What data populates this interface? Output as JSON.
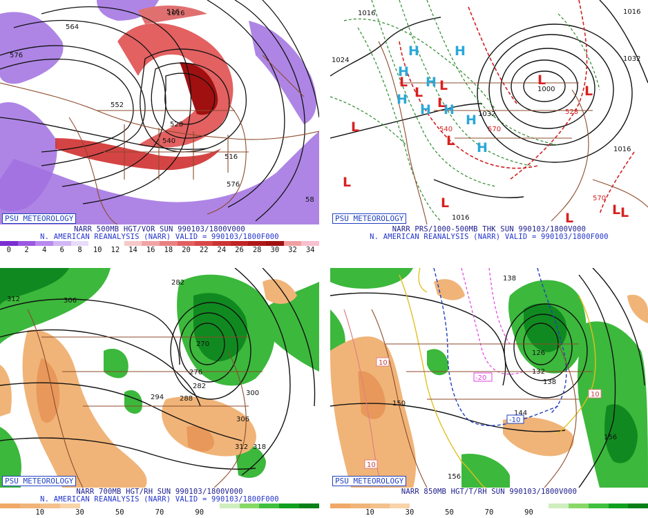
{
  "branding": "PSU METEOROLOGY",
  "panels": [
    {
      "id": "p1",
      "caption1": "NARR 500MB HGT/VOR SUN 990103/1800V000",
      "caption2": "N. AMERICAN REANALYSIS (NARR) VALID = 990103/1800F000",
      "colorbar": {
        "colors": [
          "#7a2fd0",
          "#9a58e0",
          "#b888ee",
          "#d2b6f4",
          "#e8dcfa",
          "#ffffff",
          "#ffffff",
          "#f6c8c8",
          "#f0a4a4",
          "#e88080",
          "#e06060",
          "#d84848",
          "#cc3434",
          "#c02424",
          "#b01818",
          "#a01010",
          "#f0a0a0",
          "#f8c0d0"
        ],
        "ticks": [
          "0",
          "2",
          "4",
          "6",
          "8",
          "10",
          "12",
          "14",
          "16",
          "18",
          "20",
          "22",
          "24",
          "26",
          "28",
          "30",
          "32",
          "34"
        ]
      },
      "labels": [
        "564",
        "576",
        "552",
        "528",
        "540",
        "516",
        "576",
        "516",
        "58"
      ]
    },
    {
      "id": "p2",
      "caption1": "NARR PRS/1000-500MB THK SUN 990103/1800V000",
      "caption2": "N. AMERICAN REANALYSIS (NARR) VALID = 990103/1800F000",
      "labels": [
        "1016",
        "1024",
        "1032",
        "1016",
        "1032",
        "1016",
        "1016",
        "1000",
        "540",
        "570",
        "570",
        "528"
      ],
      "high_symbol": "H",
      "low_symbol": "L"
    },
    {
      "id": "p3",
      "caption1": "NARR 700MB HGT/RH SUN 990103/1800V000",
      "caption2": "N. AMERICAN REANALYSIS (NARR) VALID = 990103/1800F000",
      "colorbar": {
        "colors": [
          "#f0a868",
          "#f0b478",
          "#f4c08c",
          "#f8d4a8",
          "#ffffff",
          "#ffffff",
          "#ffffff",
          "#ffffff",
          "#ffffff",
          "#ffffff",
          "#ffffff",
          "#cfeec0",
          "#88d868",
          "#40c040",
          "#10a020",
          "#088018"
        ],
        "ticks": [
          "10",
          "30",
          "50",
          "70",
          "90"
        ]
      },
      "labels": [
        "312",
        "306",
        "282",
        "270",
        "276",
        "282",
        "294",
        "288",
        "300",
        "306",
        "312",
        "318"
      ]
    },
    {
      "id": "p4",
      "caption1": "NARR 850MB HGT/T/RH SUN 990103/1800V000",
      "colorbar": {
        "colors": [
          "#f0a868",
          "#f0b478",
          "#f4c08c",
          "#f8d4a8",
          "#ffffff",
          "#ffffff",
          "#ffffff",
          "#ffffff",
          "#ffffff",
          "#ffffff",
          "#ffffff",
          "#cfeec0",
          "#88d868",
          "#40c040",
          "#10a020",
          "#088018"
        ],
        "ticks": [
          "10",
          "30",
          "50",
          "70",
          "90"
        ]
      },
      "labels": [
        "138",
        "126",
        "132",
        "138",
        "144",
        "150",
        "156",
        "156",
        "150",
        "-20",
        "-10",
        "10",
        "10",
        "10"
      ]
    }
  ]
}
